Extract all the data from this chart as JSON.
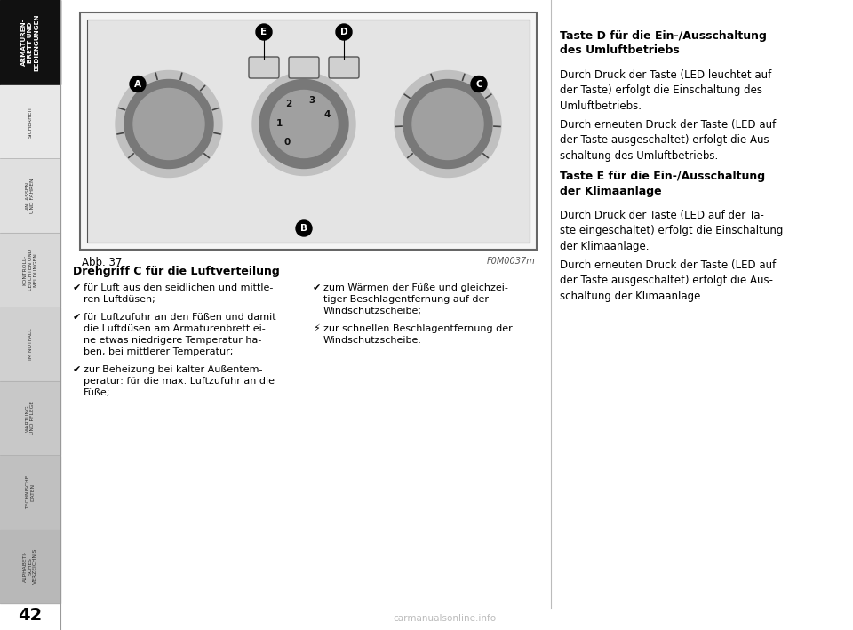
{
  "bg_color": "#ffffff",
  "page_number": "42",
  "sidebar_active_text": "ARMATUREN-\nBRETT UND\nBEDIENGUNGEN",
  "sidebar_items": [
    "SICHERHEIT",
    "ANLASSEN\nUND FAHREN",
    "KONTROLL-\nLEUCHTEN UND\nMELDUNGEN",
    "IM NOTFALL",
    "WARTUNG\nUND PFLEGE",
    "TECHNISCHE\nDATEN",
    "ALPHABETI-\nSCHES\nVERZEICHNIS"
  ],
  "figure_caption": "Abb. 37",
  "figure_code": "F0M0037m",
  "heading1": "Drehgriff C für die Luftverteilung",
  "heading2": "Taste D für die Ein-/Ausschaltung\ndes Umluftbetriebs",
  "heading3": "Taste E für die Ein-/Ausschaltung\nder Klimaanlage",
  "para_d1": "Durch Druck der Taste (LED leuchtet auf\nder Taste) erfolgt die Einschaltung des\nUmluftbetriebs.",
  "para_d2": "Durch erneuten Druck der Taste (LED auf\nder Taste ausgeschaltet) erfolgt die Aus-\nschaltung des Umluftbetriebs.",
  "para_e1": "Durch Druck der Taste (LED auf der Ta-\nste eingeschaltet) erfolgt die Einschaltung\nder Klimaanlage.",
  "para_e2": "Durch erneuten Druck der Taste (LED auf\nder Taste ausgeschaltet) erfolgt die Aus-\nschaltung der Klimaanlage.",
  "watermark": "carmanualsonline.info"
}
